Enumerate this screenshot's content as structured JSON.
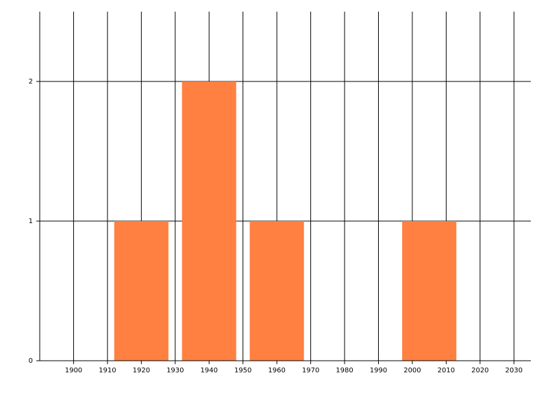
{
  "chart_data": {
    "type": "bar",
    "x": [
      1920,
      1940,
      1960,
      2005
    ],
    "values": [
      1,
      2,
      1,
      1
    ],
    "color": "#ff8040",
    "xlim": [
      1890,
      2035
    ],
    "xticks": [
      1900,
      1910,
      1920,
      1930,
      1940,
      1950,
      1960,
      1970,
      1980,
      1990,
      2000,
      2010,
      2020,
      2030
    ],
    "ylim": [
      0,
      2.5
    ],
    "yticks": [
      0,
      1,
      2
    ],
    "grid": true
  }
}
